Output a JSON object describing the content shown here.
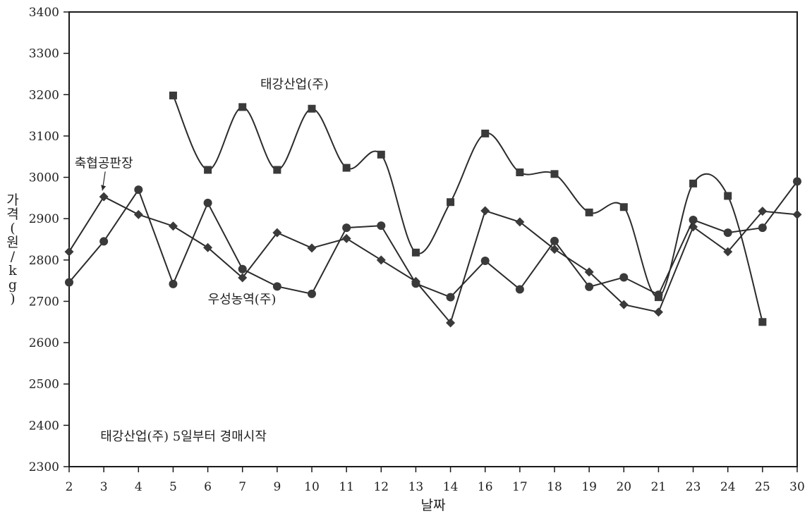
{
  "chart_data": {
    "type": "line",
    "x_categories": [
      "2",
      "3",
      "4",
      "5",
      "6",
      "7",
      "9",
      "10",
      "11",
      "12",
      "13",
      "14",
      "16",
      "17",
      "18",
      "19",
      "20",
      "21",
      "23",
      "24",
      "25",
      "30"
    ],
    "ylim": [
      2300,
      3400
    ],
    "yticks": [
      2300,
      2400,
      2500,
      2600,
      2700,
      2800,
      2900,
      3000,
      3100,
      3200,
      3300,
      3400
    ],
    "xlabel": "날짜",
    "ylabel": "가격(원/kg)",
    "grid": false,
    "series": [
      {
        "name": "태강산업(주)",
        "marker": "square",
        "smooth": true,
        "values": [
          null,
          null,
          null,
          3198,
          3018,
          3170,
          3018,
          3166,
          3023,
          3055,
          2818,
          2940,
          3106,
          3012,
          3008,
          2915,
          2928,
          2710,
          2985,
          2955,
          2650,
          null
        ]
      },
      {
        "name": "축협공판장",
        "marker": "diamond",
        "smooth": false,
        "values": [
          2820,
          2953,
          2910,
          2882,
          2830,
          2757,
          2866,
          2829,
          2852,
          2800,
          2748,
          2648,
          2919,
          2892,
          2826,
          2771,
          2692,
          2674,
          2880,
          2820,
          2918,
          2910
        ]
      },
      {
        "name": "우성농역(주)",
        "marker": "circle",
        "smooth": false,
        "values": [
          2746,
          2845,
          2970,
          2742,
          2938,
          2778,
          2736,
          2718,
          2878,
          2883,
          2743,
          2710,
          2798,
          2729,
          2846,
          2735,
          2758,
          2716,
          2897,
          2866,
          2878,
          2990
        ]
      }
    ],
    "annotations": [
      {
        "text": "태강산업(주)",
        "x": "9.5",
        "y": 3215
      },
      {
        "text": "축협공판장",
        "x": "3",
        "y": 3024
      },
      {
        "text": "우성농역(주)",
        "x": "6",
        "y": 2695
      },
      {
        "text": "태강산업(주) 5일부터 경매시작",
        "x": "2.9",
        "y": 2363
      }
    ],
    "colors": {
      "line": "#2b2b2b",
      "marker": "#3a3a3a",
      "axis": "#1a1a1a"
    }
  }
}
